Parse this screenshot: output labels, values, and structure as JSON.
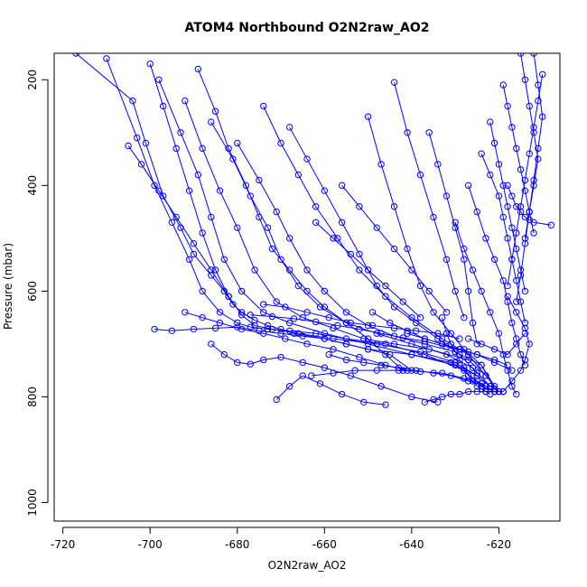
{
  "chart_data": {
    "type": "scatter",
    "title": "ATOM4 Northbound O2N2raw_AO2",
    "xlabel": "O2N2raw_AO2",
    "ylabel": "Pressure (mbar)",
    "xlim": [
      -722,
      -606
    ],
    "ylim": [
      1035,
      150
    ],
    "y_reversed": true,
    "grid": false,
    "marker": "open-circle",
    "connect_points": true,
    "colors": {
      "series": "#0000ff",
      "axes": "#000000"
    },
    "x_ticks": [
      -720,
      -700,
      -680,
      -660,
      -640,
      -620
    ],
    "x_tick_labels": [
      "-720",
      "-700",
      "-680",
      "-660",
      "-640",
      "-620"
    ],
    "y_ticks": [
      200,
      400,
      600,
      800,
      1000
    ],
    "y_tick_labels": [
      "200",
      "400",
      "600",
      "800",
      "1000"
    ],
    "series": [
      {
        "x": [
          -717,
          -704,
          -701,
          -697,
          -693,
          -690,
          -686,
          -683,
          -681,
          -679,
          -676,
          -673,
          -670,
          -667,
          -660,
          -655,
          -650,
          -640,
          -631,
          -625,
          -622,
          -620
        ],
        "y": [
          150,
          240,
          320,
          420,
          480,
          530,
          570,
          600,
          625,
          640,
          655,
          665,
          672,
          680,
          690,
          700,
          710,
          720,
          735,
          760,
          780,
          790
        ]
      },
      {
        "x": [
          -710,
          -703,
          -699,
          -695,
          -691,
          -688,
          -684,
          -680,
          -677,
          -673,
          -668,
          -662,
          -655,
          -646,
          -637,
          -628,
          -624,
          -621
        ],
        "y": [
          160,
          310,
          400,
          470,
          540,
          600,
          640,
          660,
          668,
          672,
          675,
          680,
          690,
          700,
          720,
          750,
          780,
          790
        ]
      },
      {
        "x": [
          -698,
          -693,
          -689,
          -686,
          -683,
          -679,
          -674,
          -668,
          -660,
          -650,
          -640,
          -630,
          -625,
          -622
        ],
        "y": [
          200,
          300,
          380,
          460,
          540,
          600,
          640,
          660,
          680,
          700,
          720,
          740,
          770,
          785
        ]
      },
      {
        "x": [
          -692,
          -688,
          -684,
          -680,
          -676,
          -671,
          -665,
          -658,
          -651,
          -644,
          -636,
          -627,
          -623
        ],
        "y": [
          240,
          330,
          410,
          480,
          560,
          620,
          650,
          670,
          690,
          700,
          710,
          730,
          760
        ]
      },
      {
        "x": [
          -686,
          -681,
          -677,
          -673,
          -670,
          -666,
          -661,
          -655,
          -648,
          -640,
          -632,
          -626,
          -622
        ],
        "y": [
          280,
          350,
          420,
          480,
          540,
          590,
          630,
          660,
          680,
          700,
          720,
          745,
          780
        ]
      },
      {
        "x": [
          -680,
          -675,
          -671,
          -668,
          -664,
          -660,
          -655,
          -650,
          -644,
          -637,
          -630,
          -624,
          -621
        ],
        "y": [
          320,
          390,
          450,
          500,
          560,
          600,
          640,
          665,
          685,
          700,
          715,
          740,
          785
        ]
      },
      {
        "x": [
          -689,
          -685,
          -682,
          -678,
          -675,
          -672,
          -668,
          -664,
          -660,
          -655,
          -650,
          -646,
          -642
        ],
        "y": [
          180,
          260,
          330,
          400,
          460,
          520,
          560,
          600,
          630,
          660,
          690,
          720,
          750
        ]
      },
      {
        "x": [
          -674,
          -670,
          -666,
          -662,
          -657,
          -652,
          -646,
          -640,
          -633,
          -627,
          -623,
          -620
        ],
        "y": [
          250,
          320,
          380,
          440,
          500,
          560,
          610,
          650,
          690,
          720,
          760,
          790
        ]
      },
      {
        "x": [
          -700,
          -697,
          -694,
          -691,
          -688,
          -685,
          -682,
          -679,
          -676,
          -672,
          -666,
          -658,
          -648,
          -638,
          -630,
          -625
        ],
        "y": [
          170,
          250,
          330,
          410,
          490,
          560,
          610,
          645,
          665,
          672,
          680,
          690,
          700,
          715,
          735,
          760
        ]
      },
      {
        "x": [
          -668,
          -664,
          -660,
          -656,
          -652,
          -648,
          -644,
          -639,
          -634,
          -629,
          -625
        ],
        "y": [
          290,
          350,
          410,
          470,
          530,
          590,
          630,
          660,
          690,
          720,
          755
        ]
      },
      {
        "x": [
          -650,
          -647,
          -644,
          -641,
          -638,
          -635,
          -631,
          -628,
          -624,
          -621
        ],
        "y": [
          270,
          360,
          440,
          520,
          590,
          640,
          680,
          710,
          740,
          780
        ]
      },
      {
        "x": [
          -699,
          -695,
          -690,
          -685,
          -680,
          -675,
          -670,
          -665,
          -660,
          -655,
          -650,
          -645,
          -640
        ],
        "y": [
          672,
          675,
          672,
          670,
          668,
          675,
          680,
          685,
          690,
          700,
          710,
          720,
          750
        ]
      },
      {
        "x": [
          -692,
          -688,
          -684,
          -679,
          -674,
          -669,
          -664,
          -658,
          -652,
          -646,
          -641
        ],
        "y": [
          640,
          650,
          660,
          672,
          680,
          690,
          700,
          710,
          725,
          740,
          750
        ]
      },
      {
        "x": [
          -686,
          -683,
          -680,
          -677,
          -674,
          -670,
          -665,
          -660,
          -654,
          -647,
          -640,
          -634
        ],
        "y": [
          700,
          720,
          735,
          738,
          730,
          725,
          735,
          745,
          760,
          780,
          800,
          810
        ]
      },
      {
        "x": [
          -671,
          -668,
          -665,
          -661,
          -656,
          -651,
          -646
        ],
        "y": [
          805,
          780,
          760,
          775,
          795,
          810,
          815
        ]
      },
      {
        "x": [
          -644,
          -641,
          -638,
          -635,
          -632,
          -630,
          -628
        ],
        "y": [
          205,
          300,
          380,
          460,
          540,
          600,
          650
        ]
      },
      {
        "x": [
          -636,
          -634,
          -632,
          -630,
          -628,
          -627,
          -626,
          -625
        ],
        "y": [
          300,
          360,
          420,
          480,
          540,
          600,
          660,
          700
        ]
      },
      {
        "x": [
          -633,
          -632,
          -631,
          -630,
          -629,
          -628,
          -627,
          -626,
          -625,
          -624,
          -623,
          -622
        ],
        "y": [
          650,
          680,
          700,
          715,
          730,
          745,
          760,
          770,
          780,
          785,
          790,
          795
        ]
      },
      {
        "x": [
          -630,
          -628,
          -626,
          -624,
          -622,
          -620,
          -619,
          -618,
          -617,
          -616
        ],
        "y": [
          470,
          520,
          560,
          600,
          640,
          680,
          720,
          750,
          780,
          795
        ]
      },
      {
        "x": [
          -627,
          -625,
          -623,
          -621,
          -619,
          -618,
          -617,
          -616,
          -615,
          -614
        ],
        "y": [
          400,
          450,
          500,
          540,
          580,
          620,
          660,
          690,
          720,
          740
        ]
      },
      {
        "x": [
          -624,
          -622,
          -620,
          -619,
          -618,
          -617,
          -616,
          -615,
          -614
        ],
        "y": [
          340,
          380,
          420,
          460,
          500,
          540,
          580,
          620,
          660
        ]
      },
      {
        "x": [
          -622,
          -621,
          -620,
          -619,
          -618,
          -617,
          -616,
          -615,
          -614
        ],
        "y": [
          280,
          320,
          360,
          400,
          440,
          480,
          520,
          560,
          600
        ]
      },
      {
        "x": [
          -619,
          -618,
          -617,
          -616,
          -615,
          -614,
          -613,
          -612
        ],
        "y": [
          210,
          250,
          290,
          330,
          370,
          410,
          450,
          490
        ]
      },
      {
        "x": [
          -615,
          -614,
          -613,
          -612,
          -611,
          -612,
          -613,
          -614
        ],
        "y": [
          150,
          200,
          250,
          300,
          350,
          400,
          450,
          500
        ]
      },
      {
        "x": [
          -612,
          -611,
          -610,
          -611,
          -612,
          -613,
          -614,
          -615,
          -616
        ],
        "y": [
          150,
          210,
          270,
          330,
          390,
          450,
          510,
          570,
          620
        ]
      },
      {
        "x": [
          -610,
          -611,
          -612,
          -613,
          -614,
          -615,
          -616,
          -617,
          -618
        ],
        "y": [
          190,
          240,
          290,
          340,
          390,
          440,
          490,
          540,
          590
        ]
      },
      {
        "x": [
          -618,
          -617,
          -616,
          -615,
          -614,
          -613,
          -612,
          -608
        ],
        "y": [
          400,
          420,
          440,
          450,
          460,
          465,
          470,
          475
        ]
      },
      {
        "x": [
          -627,
          -624,
          -621,
          -618,
          -616,
          -614
        ],
        "y": [
          690,
          700,
          710,
          720,
          700,
          680
        ]
      },
      {
        "x": [
          -641,
          -637,
          -633,
          -629,
          -625,
          -621,
          -618
        ],
        "y": [
          680,
          690,
          700,
          710,
          720,
          730,
          740
        ]
      },
      {
        "x": [
          -649,
          -645,
          -641,
          -637,
          -633,
          -629,
          -625,
          -621,
          -617
        ],
        "y": [
          640,
          660,
          675,
          690,
          700,
          710,
          720,
          735,
          750
        ]
      },
      {
        "x": [
          -659,
          -655,
          -651,
          -647,
          -643,
          -639,
          -635,
          -631,
          -627,
          -623
        ],
        "y": [
          720,
          730,
          735,
          740,
          745,
          750,
          755,
          760,
          770,
          780
        ]
      },
      {
        "x": [
          -663,
          -658,
          -653,
          -648,
          -643,
          -638,
          -633,
          -628,
          -624
        ],
        "y": [
          760,
          755,
          750,
          750,
          750,
          752,
          755,
          765,
          775
        ]
      },
      {
        "x": [
          -637,
          -635,
          -633,
          -631,
          -629,
          -627,
          -625,
          -623,
          -621,
          -619
        ],
        "y": [
          810,
          805,
          800,
          795,
          795,
          790,
          790,
          790,
          790,
          790
        ]
      },
      {
        "x": [
          -619,
          -617,
          -615,
          -614,
          -613,
          -614,
          -616,
          -618
        ],
        "y": [
          790,
          770,
          750,
          730,
          700,
          670,
          640,
          610
        ]
      },
      {
        "x": [
          -674,
          -669,
          -664,
          -659,
          -654,
          -649,
          -644,
          -639,
          -634,
          -629
        ],
        "y": [
          625,
          630,
          640,
          650,
          660,
          665,
          670,
          675,
          680,
          690
        ]
      },
      {
        "x": [
          -677,
          -672,
          -667,
          -662,
          -657,
          -652,
          -647,
          -642,
          -637,
          -632,
          -627
        ],
        "y": [
          645,
          648,
          652,
          658,
          665,
          672,
          680,
          688,
          695,
          705,
          715
        ]
      },
      {
        "x": [
          -662,
          -658,
          -654,
          -650,
          -646,
          -642,
          -638
        ],
        "y": [
          470,
          500,
          530,
          560,
          590,
          620,
          650
        ]
      },
      {
        "x": [
          -656,
          -652,
          -648,
          -644,
          -640,
          -636,
          -632
        ],
        "y": [
          400,
          440,
          480,
          520,
          560,
          600,
          640
        ]
      },
      {
        "x": [
          -705,
          -702,
          -698,
          -694,
          -690,
          -686,
          -682
        ],
        "y": [
          325,
          360,
          410,
          460,
          510,
          560,
          610
        ]
      }
    ]
  }
}
